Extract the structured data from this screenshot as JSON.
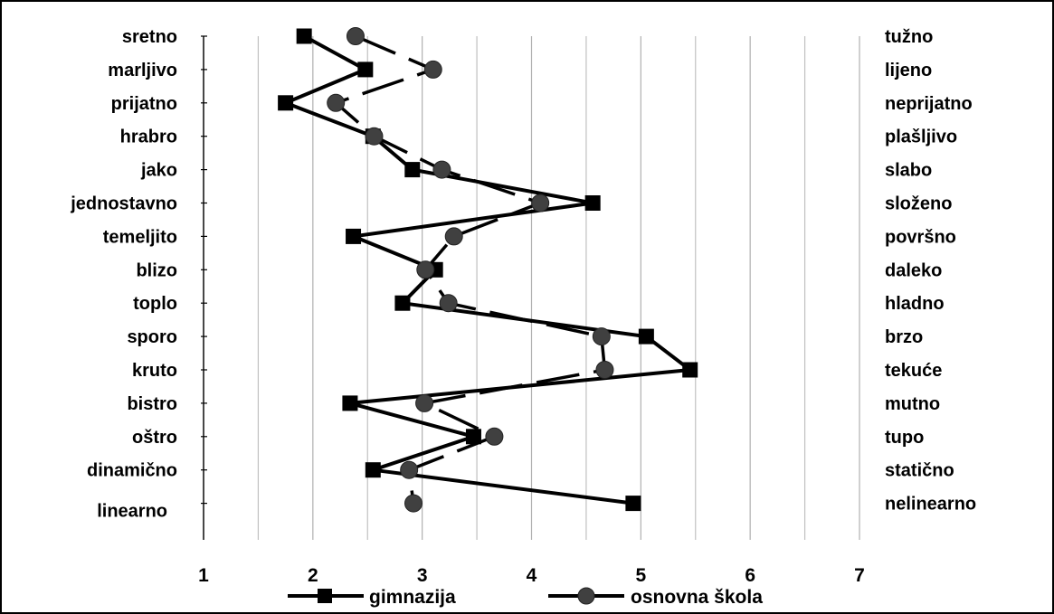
{
  "chart_data": {
    "type": "line",
    "x_axis": {
      "min": 1,
      "max": 7,
      "ticks": [
        "1",
        "2",
        "3",
        "4",
        "5",
        "6",
        "7"
      ]
    },
    "grid": "vertical",
    "legend_position": "bottom",
    "categories_left": [
      "sretno",
      "marljivo",
      "prijatno",
      "hrabro",
      "jako",
      "jednostavno",
      "temeljito",
      "blizo",
      "toplo",
      "sporo",
      "kruto",
      "bistro",
      "oštro",
      "dinamično",
      "linearno"
    ],
    "categories_right": [
      "tužno",
      "lijeno",
      "neprijatno",
      "plašljivo",
      "slabo",
      "složeno",
      "površno",
      "daleko",
      "hladno",
      "brzo",
      "tekuće",
      "mutno",
      "tupo",
      "statično",
      "nelinearno"
    ],
    "series": [
      {
        "name": "gimnazija",
        "marker": "square",
        "line": "solid",
        "values": [
          1.92,
          2.48,
          1.75,
          2.55,
          2.91,
          4.56,
          2.37,
          3.12,
          2.82,
          5.05,
          5.45,
          2.34,
          3.47,
          2.55,
          4.93
        ]
      },
      {
        "name": "osnovna škola",
        "marker": "circle",
        "line": "dashed",
        "values": [
          2.39,
          3.1,
          2.21,
          2.56,
          3.18,
          4.08,
          3.29,
          3.03,
          3.24,
          4.64,
          4.67,
          3.02,
          3.66,
          2.88,
          2.92
        ]
      }
    ],
    "colors": {
      "line": "#000000",
      "marker_square": "#000000",
      "marker_circle": "#404040",
      "grid": "#c0c0c0"
    }
  }
}
